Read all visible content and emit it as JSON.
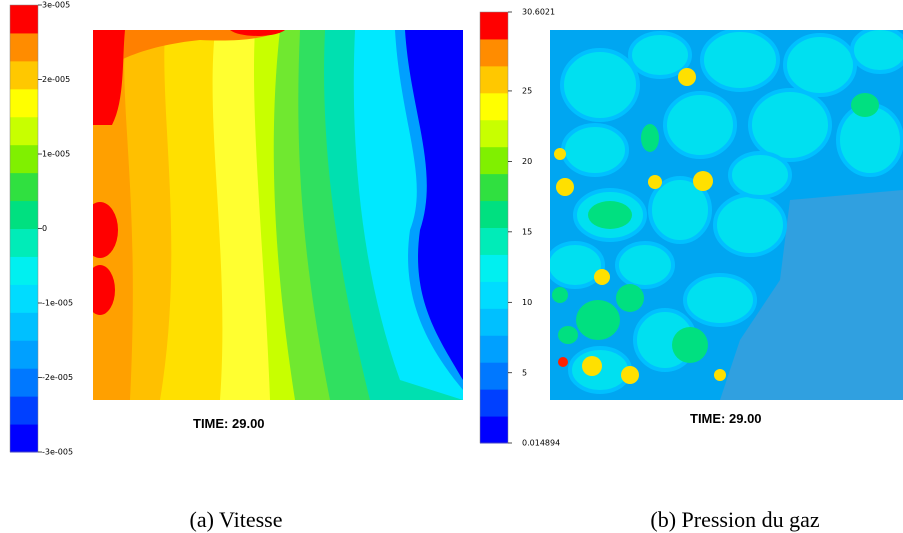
{
  "colormap": [
    "#0000ff",
    "#0040ff",
    "#0078ff",
    "#00a0ff",
    "#00c0ff",
    "#00dcff",
    "#00f0f0",
    "#00ecb8",
    "#00e080",
    "#30e040",
    "#80f000",
    "#c8ff00",
    "#ffff00",
    "#ffc800",
    "#ff8c00",
    "#ff0000"
  ],
  "panels": [
    {
      "colorbar": {
        "range": [
          -3e-05,
          3e-05
        ],
        "ticks": [
          {
            "value": 3e-05,
            "label": "3e-005"
          },
          {
            "value": 2e-05,
            "label": "2e-005"
          },
          {
            "value": 1e-05,
            "label": "1e-005"
          },
          0,
          {
            "value": -1e-05,
            "label": "-1e-005"
          },
          {
            "value": -2e-05,
            "label": "-2e-005"
          },
          {
            "value": -3e-05,
            "label": "-3e-005"
          }
        ]
      },
      "time": "TIME:   29.00",
      "caption": "(a) Vitesse"
    },
    {
      "colorbar": {
        "range": [
          0.014894,
          30.6021
        ],
        "ticks": [
          30.6021,
          25,
          20,
          15,
          10,
          5,
          0.014894
        ]
      },
      "time": "TIME:   29.00",
      "caption": "(b) Pression du gaz"
    }
  ]
}
